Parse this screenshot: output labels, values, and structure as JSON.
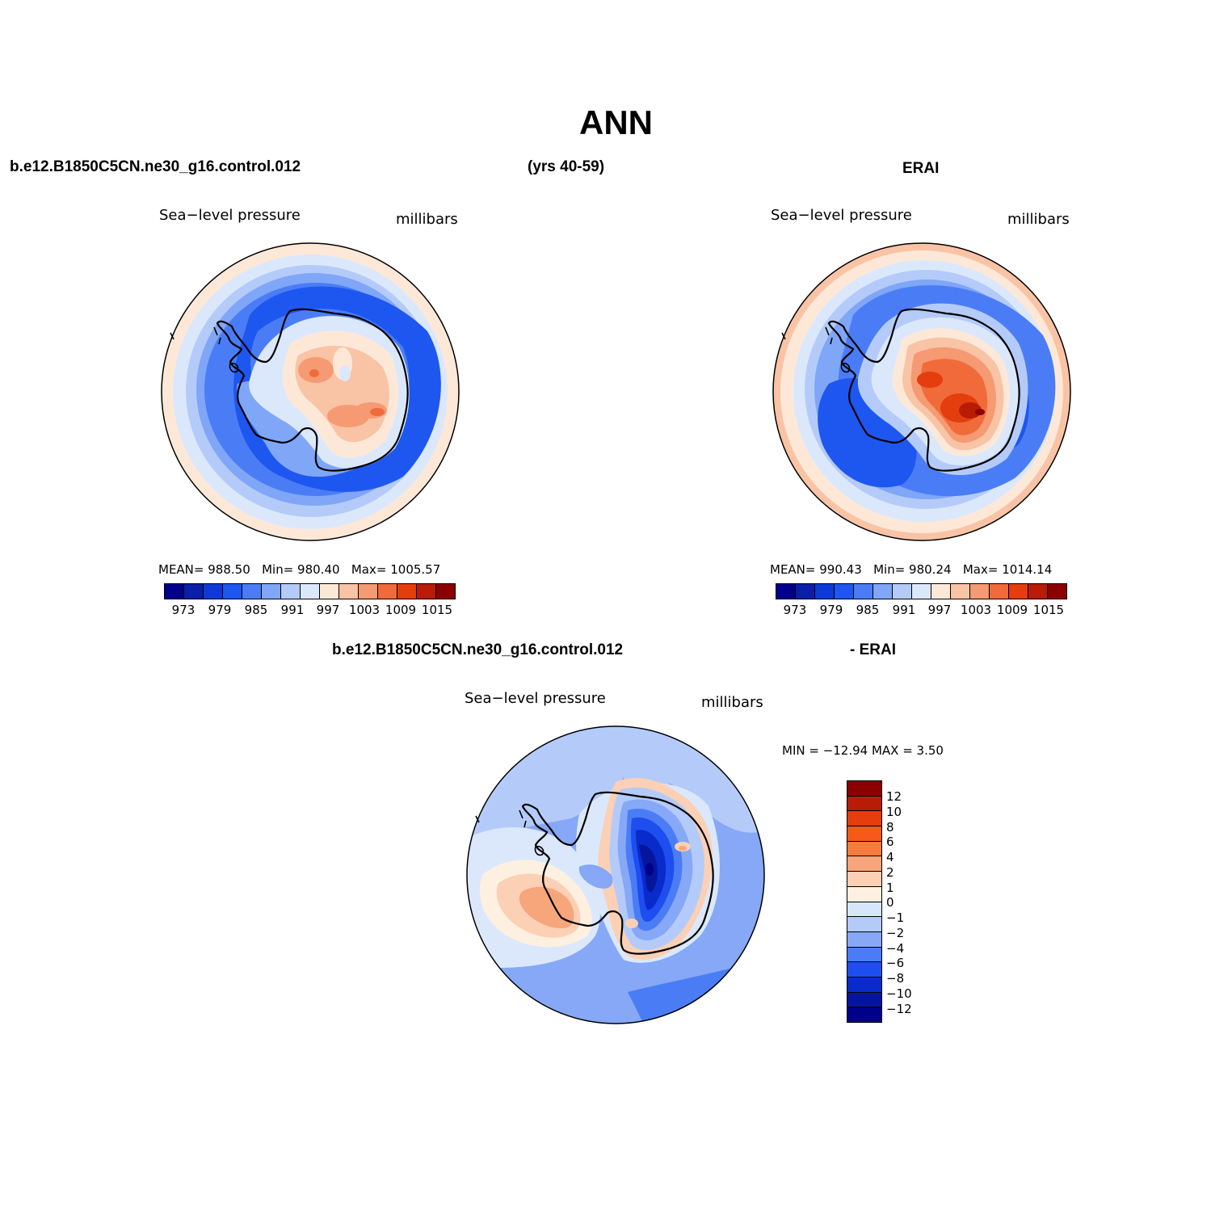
{
  "title": "ANN",
  "header": {
    "case": "b.e12.B1850C5CN.ne30_g16.control.012",
    "years": "(yrs 40-59)",
    "obs": "ERAI",
    "diff_case": "b.e12.B1850C5CN.ne30_g16.control.012",
    "diff_obs": "- ERAI"
  },
  "panels": {
    "model": {
      "variable": "Sea−level pressure",
      "units": "millibars",
      "stats": {
        "mean_label": "MEAN=",
        "mean": "988.50",
        "min_label": "Min=",
        "min": "980.40",
        "max_label": "Max=",
        "max": "1005.57"
      }
    },
    "obs": {
      "variable": "Sea−level pressure",
      "units": "millibars",
      "stats": {
        "mean_label": "MEAN=",
        "mean": "990.43",
        "min_label": "Min=",
        "min": "980.24",
        "max_label": "Max=",
        "max": "1014.14"
      }
    },
    "diff": {
      "variable": "Sea−level pressure",
      "units": "millibars",
      "minmax": "MIN = −12.94  MAX =    3.50"
    }
  },
  "colorbar_main": {
    "colors": [
      "#00008b",
      "#0a1ea8",
      "#0d3ad6",
      "#1e56f0",
      "#4a7df5",
      "#7fa6f7",
      "#b4cbfa",
      "#dbe8fc",
      "#fde8d8",
      "#f9c3a6",
      "#f59a72",
      "#f06a3a",
      "#e43d0e",
      "#b81c06",
      "#8b0000"
    ],
    "tick_labels": [
      "973",
      "979",
      "985",
      "991",
      "997",
      "1003",
      "1009",
      "1015"
    ]
  },
  "colorbar_diff": {
    "colors_top_to_bottom": [
      "#8b0000",
      "#b81c06",
      "#e43d0e",
      "#f65a1a",
      "#f57c3e",
      "#f7a57a",
      "#fbd0b5",
      "#fdf0e0",
      "#d7e6fb",
      "#b4cbfa",
      "#86a8f7",
      "#4a7df5",
      "#1e4ef0",
      "#0a2bcc",
      "#06169c",
      "#00008b"
    ],
    "tick_labels": [
      "12",
      "10",
      "8",
      "6",
      "4",
      "2",
      "1",
      "0",
      "−1",
      "−2",
      "−4",
      "−6",
      "−8",
      "−10",
      "−12"
    ]
  }
}
